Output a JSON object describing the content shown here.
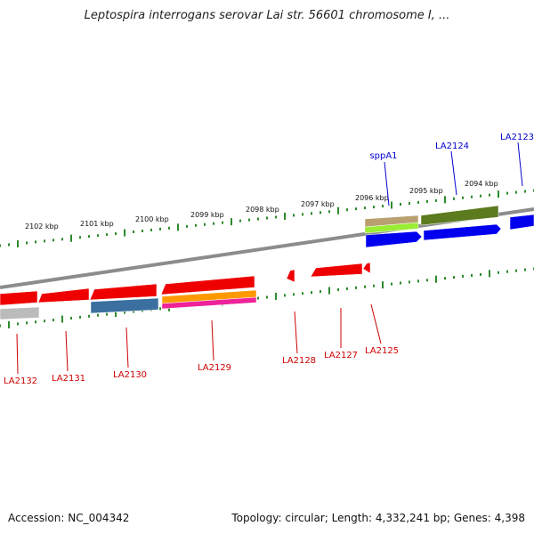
{
  "title": "Leptospira interrogans serovar Lai str. 56601 chromosome I, ...",
  "footer": {
    "accession": "Accession: NC_004342",
    "topology": "Topology: circular; Length: 4,332,241 bp; Genes: 4,398"
  },
  "colors": {
    "backbone": "#8c8c8c",
    "tick": "#2d8a2d",
    "ruler_text": "#111111",
    "reverse_label": "#cc0000",
    "forward_label": "#0000cc"
  },
  "ruler_labels": [
    "2102 kbp",
    "2101 kbp",
    "2100 kbp",
    "2099 kbp",
    "2098 kbp",
    "2097 kbp",
    "2096 kbp",
    "2095 kbp",
    "2094 kbp"
  ],
  "gene_labels_top": [
    "sppA1",
    "LA2124",
    "LA2123"
  ],
  "gene_labels_bottom": [
    "LA2132",
    "LA2131",
    "LA2130",
    "LA2129",
    "LA2128",
    "LA2127",
    "LA2125"
  ],
  "features": [
    {
      "name": "forward-gene-1",
      "color": "#0000ee"
    },
    {
      "name": "forward-gene-2",
      "color": "#0000ee"
    },
    {
      "name": "forward-gene-3",
      "color": "#0000ee"
    },
    {
      "name": "reverse-gene-1",
      "color": "#ee0000"
    },
    {
      "name": "reverse-gene-2",
      "color": "#ee0000"
    },
    {
      "name": "reverse-gene-3",
      "color": "#ee0000"
    },
    {
      "name": "reverse-gene-4",
      "color": "#ee0000"
    },
    {
      "name": "reverse-gene-5",
      "color": "#ee0000"
    },
    {
      "name": "reverse-gene-6",
      "color": "#ee0000"
    },
    {
      "name": "reverse-gene-7",
      "color": "#ee0000"
    },
    {
      "name": "cog-tan",
      "color": "#b8a070"
    },
    {
      "name": "cog-light-green",
      "color": "#99ee33"
    },
    {
      "name": "cog-olive",
      "color": "#5c7a1e"
    },
    {
      "name": "cog-gray",
      "color": "#bbbbbb"
    },
    {
      "name": "cog-steel-blue",
      "color": "#3a6fa0"
    },
    {
      "name": "cog-orange",
      "color": "#ff9900"
    },
    {
      "name": "cog-magenta",
      "color": "#ee2299"
    }
  ]
}
